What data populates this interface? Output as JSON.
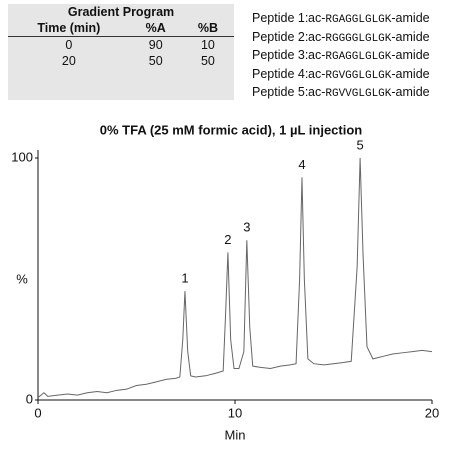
{
  "gradient": {
    "title": "Gradient Program",
    "columns": [
      "Time (min)",
      "%A",
      "%B"
    ],
    "rows": [
      [
        0,
        90,
        10
      ],
      [
        20,
        50,
        50
      ]
    ]
  },
  "peptides": [
    {
      "label": "Peptide 1:",
      "prefix": "ac-",
      "sequence": "RGAGGLGLGK",
      "suffix": "-amide"
    },
    {
      "label": "Peptide 2:",
      "prefix": "ac-",
      "sequence": "RGGGGLGLGK",
      "suffix": "-amide"
    },
    {
      "label": "Peptide 3:",
      "prefix": "ac-",
      "sequence": "RGAGGLGLGK",
      "suffix": "-amide"
    },
    {
      "label": "Peptide 4:",
      "prefix": "ac-",
      "sequence": "RGVGGLGLGK",
      "suffix": "-amide"
    },
    {
      "label": "Peptide 5:",
      "prefix": "ac-",
      "sequence": "RGVVGLGLGK",
      "suffix": "-amide"
    }
  ],
  "chart_data": {
    "type": "line",
    "title": "0% TFA (25 mM formic acid), 1 µL injection",
    "x_label": "Min",
    "y_label": "%",
    "color": "#666666",
    "xlim": [
      0,
      20
    ],
    "xticks": [
      0,
      10,
      20
    ],
    "ylim": [
      0,
      100
    ],
    "yticks": [
      0,
      100
    ],
    "x": [
      0,
      0.3,
      0.5,
      1,
      1.5,
      2,
      2.5,
      3,
      3.5,
      4,
      4.5,
      5,
      5.5,
      6,
      6.5,
      7,
      7.2,
      7.35,
      7.46,
      7.6,
      7.75,
      8,
      8.5,
      9,
      9.4,
      9.52,
      9.64,
      9.78,
      9.95,
      10.2,
      10.45,
      10.6,
      10.75,
      10.9,
      11.3,
      11.8,
      12.3,
      12.8,
      13.1,
      13.28,
      13.4,
      13.52,
      13.7,
      14,
      14.5,
      15,
      15.5,
      15.9,
      16.2,
      16.35,
      16.5,
      16.7,
      17,
      17.5,
      18,
      18.5,
      19,
      19.5,
      20
    ],
    "values": [
      1,
      3,
      1.5,
      2,
      2.5,
      2,
      3,
      3.5,
      3,
      4,
      4.5,
      6,
      6.5,
      7.5,
      8.5,
      9,
      9.5,
      25,
      45,
      20,
      10,
      9.5,
      10,
      11,
      12,
      35,
      61,
      25,
      13,
      13,
      20,
      66,
      30,
      14,
      13.5,
      13,
      14,
      14.5,
      15,
      50,
      92,
      50,
      17,
      15,
      14.5,
      15,
      15.5,
      16,
      55,
      100,
      60,
      22,
      17,
      18,
      19,
      19.5,
      20,
      20.5,
      20
    ],
    "annotations": [
      {
        "text": "1",
        "x": 7.46,
        "y": 45
      },
      {
        "text": "2",
        "x": 9.64,
        "y": 61
      },
      {
        "text": "3",
        "x": 10.6,
        "y": 66
      },
      {
        "text": "4",
        "x": 13.4,
        "y": 92
      },
      {
        "text": "5",
        "x": 16.35,
        "y": 100
      }
    ]
  }
}
